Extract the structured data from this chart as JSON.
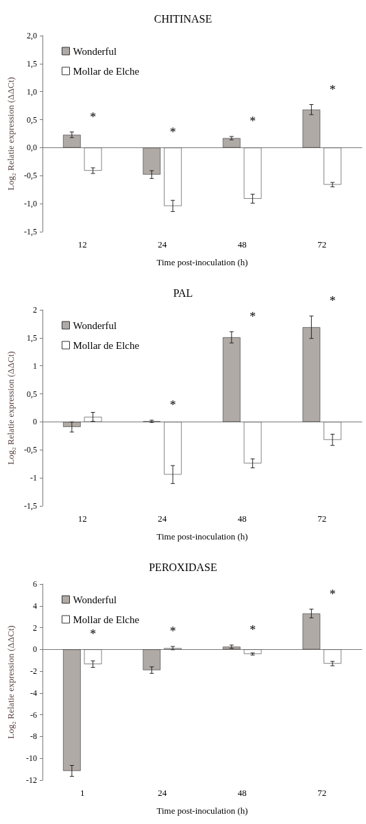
{
  "chart_data": [
    {
      "type": "bar",
      "title": "CHITINASE",
      "xlabel": "Time post-inoculation (h)",
      "ylabel": "Log₂ Relatie expression (ΔΔCt)",
      "categories": [
        "12",
        "24",
        "48",
        "72"
      ],
      "series": [
        {
          "name": "Wonderful",
          "color": "#b0aaa6",
          "values": [
            0.23,
            -0.48,
            0.17,
            0.68
          ],
          "errors": [
            0.05,
            0.07,
            0.03,
            0.09
          ]
        },
        {
          "name": "Mollar de Elche",
          "color": "#ffffff",
          "values": [
            -0.41,
            -1.04,
            -0.91,
            -0.66
          ],
          "errors": [
            0.05,
            0.1,
            0.08,
            0.04
          ]
        }
      ],
      "ylim": [
        -1.5,
        2
      ],
      "yticks": [
        {
          "value": -1.5,
          "label": "-1,5"
        },
        {
          "value": -1,
          "label": "-1,0"
        },
        {
          "value": -0.5,
          "label": "-0,5"
        },
        {
          "value": 0,
          "label": "0,0"
        },
        {
          "value": 0.5,
          "label": "0,5"
        },
        {
          "value": 1,
          "label": "1,0"
        },
        {
          "value": 1.5,
          "label": "1,5"
        },
        {
          "value": 2,
          "label": "2,0"
        }
      ],
      "annotations": [
        "*",
        "*",
        "*",
        "*"
      ],
      "legend": "top left"
    },
    {
      "type": "bar",
      "title": "PAL",
      "xlabel": "Time post-inoculation (h)",
      "ylabel": "Log₂ Relatie expression (ΔΔCt)",
      "categories": [
        "12",
        "24",
        "48",
        "72"
      ],
      "series": [
        {
          "name": "Wonderful",
          "color": "#b0aaa6",
          "values": [
            -0.09,
            0.01,
            1.51,
            1.69
          ],
          "errors": [
            0.09,
            0.02,
            0.1,
            0.2
          ]
        },
        {
          "name": "Mollar de Elche",
          "color": "#ffffff",
          "values": [
            0.09,
            -0.94,
            -0.74,
            -0.32
          ],
          "errors": [
            0.08,
            0.16,
            0.08,
            0.1
          ]
        }
      ],
      "ylim": [
        -1.5,
        2
      ],
      "yticks": [
        {
          "value": -1.5,
          "label": "-1,5"
        },
        -1,
        {
          "value": -0.5,
          "label": "-0,5"
        },
        0,
        {
          "value": 0.5,
          "label": "0,5"
        },
        1,
        {
          "value": 1.5,
          "label": "1,5"
        },
        2
      ],
      "annotations": [
        "*",
        "*",
        "*"
      ],
      "legend": "top left"
    },
    {
      "type": "bar",
      "title": "PEROXIDASE",
      "xlabel": "Time post-inoculation (h)",
      "ylabel": "Log₂ Relatie expression (ΔΔCt)",
      "categories": [
        "1",
        "24",
        "48",
        "72"
      ],
      "series": [
        {
          "name": "Wonderful",
          "color": "#b0aaa6",
          "values": [
            -11.15,
            -1.9,
            0.25,
            3.3
          ],
          "errors": [
            0.5,
            0.3,
            0.15,
            0.4
          ]
        },
        {
          "name": "Mollar de Elche",
          "color": "#ffffff",
          "values": [
            -1.35,
            0.12,
            -0.42,
            -1.3
          ],
          "errors": [
            0.3,
            0.15,
            0.1,
            0.2
          ]
        }
      ],
      "ylim": [
        -12,
        6
      ],
      "yticks": [
        -12,
        -10,
        -8,
        -6,
        -4,
        -2,
        0,
        2,
        4,
        6
      ],
      "annotations": [
        "*",
        "*",
        "*",
        "*"
      ],
      "legend": "top left"
    }
  ]
}
